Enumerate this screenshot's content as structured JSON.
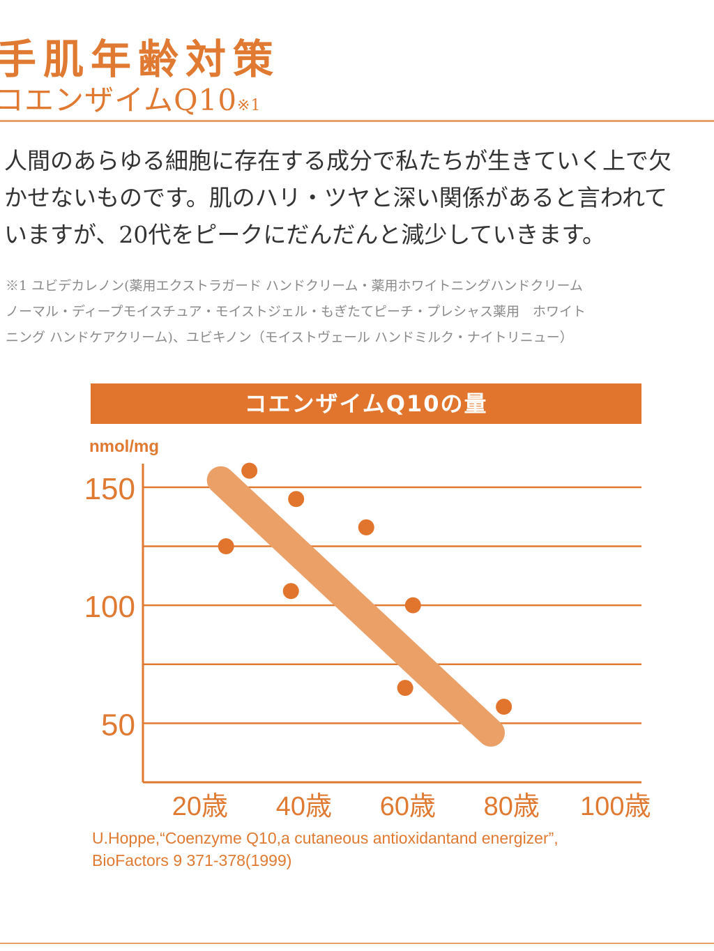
{
  "header": {
    "title": "手肌年齢対策",
    "subtitle": "コエンザイムQ10",
    "subtitle_note": "※1"
  },
  "body": {
    "lines": [
      "人間のあらゆる細胞に存在する成分で私たちが生きていく上で欠",
      "かせないものです。肌のハリ・ツヤと深い関係があると言われて",
      "いますが、20代をピークにだんだんと減少していきます。"
    ]
  },
  "footnote": {
    "lines": [
      "※1 ユビデカレノン(薬用エクストラガード ハンドクリーム・薬用ホワイトニングハンドクリーム",
      "ノーマル・ディープモイスチュア・モイストジェル・もぎたてピーチ・プレシャス薬用　ホワイト",
      "ニング ハンドケアクリーム)、ユビキノン（モイストヴェール ハンドミルク・ナイトリニュー）"
    ]
  },
  "colors": {
    "accent": "#e2752e",
    "trend": "#eba068",
    "grid": "#e07a32",
    "text_orange": "#e07a32"
  },
  "chart_data": {
    "type": "scatter",
    "title": "コエンザイムQ10の量",
    "ylabel": "nmol/mg",
    "xlabel": "",
    "x_ticks": [
      20,
      40,
      60,
      80,
      100
    ],
    "x_tick_labels": [
      "20歳",
      "40歳",
      "60歳",
      "80歳",
      "100歳"
    ],
    "y_ticks": [
      50,
      100,
      150
    ],
    "y_tick_labels": [
      "50",
      "100",
      "150"
    ],
    "y_gridlines": [
      50,
      75,
      100,
      125,
      150
    ],
    "xlim": [
      9,
      105
    ],
    "ylim": [
      25,
      160
    ],
    "grid": true,
    "points": [
      {
        "x": 25,
        "y": 125
      },
      {
        "x": 29.5,
        "y": 157
      },
      {
        "x": 37.5,
        "y": 106
      },
      {
        "x": 38.5,
        "y": 145
      },
      {
        "x": 52,
        "y": 133
      },
      {
        "x": 59.5,
        "y": 65
      },
      {
        "x": 61,
        "y": 100
      },
      {
        "x": 78.5,
        "y": 57
      }
    ],
    "trend": [
      {
        "x": 24,
        "y": 153
      },
      {
        "x": 76,
        "y": 46
      }
    ]
  },
  "source": {
    "lines": [
      "U.Hoppe,“Coenzyme Q10,a cutaneous antioxidantand energizer”,",
      "BioFactors 9 371-378(1999)"
    ]
  }
}
